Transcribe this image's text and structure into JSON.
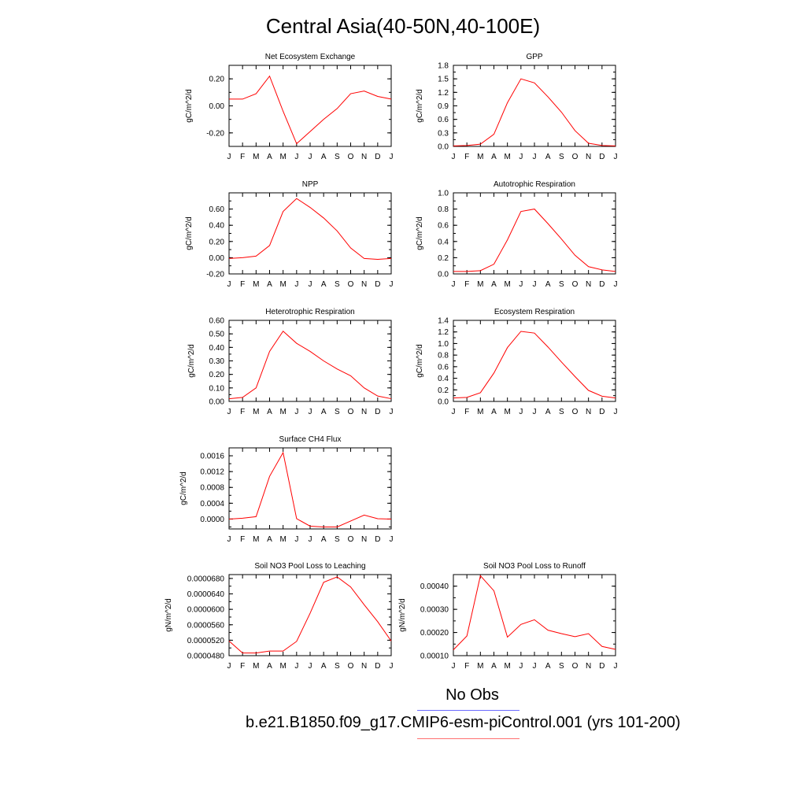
{
  "title": "Central Asia(40-50N,40-100E)",
  "colors": {
    "model": "#ff0000",
    "obs": "#0000ff"
  },
  "legend": {
    "obs_label": "No Obs",
    "case_label": "b.e21.B1850.f09_g17.CMIP6-esm-piControl.001 (yrs 101-200)"
  },
  "chart_data": [
    {
      "type": "line",
      "title": "Net Ecosystem Exchange",
      "ylabel": "gC/m^2/d",
      "categories": [
        "J",
        "F",
        "M",
        "A",
        "M",
        "J",
        "J",
        "A",
        "S",
        "O",
        "N",
        "D",
        "J"
      ],
      "yticks": [
        "-0.20",
        "0.00",
        "0.20"
      ],
      "ylim": [
        -0.3,
        0.3
      ],
      "series": [
        {
          "values": [
            0.05,
            0.05,
            0.09,
            0.22,
            -0.04,
            -0.28,
            -0.19,
            -0.1,
            -0.02,
            0.09,
            0.11,
            0.07,
            0.05
          ]
        }
      ]
    },
    {
      "type": "line",
      "title": "GPP",
      "ylabel": "gC/m^2/d",
      "categories": [
        "J",
        "F",
        "M",
        "A",
        "M",
        "J",
        "J",
        "A",
        "S",
        "O",
        "N",
        "D",
        "J"
      ],
      "yticks": [
        "0.0",
        "0.3",
        "0.6",
        "0.9",
        "1.2",
        "1.5",
        "1.8"
      ],
      "ylim": [
        0,
        1.8
      ],
      "series": [
        {
          "values": [
            0.01,
            0.02,
            0.05,
            0.27,
            0.97,
            1.5,
            1.41,
            1.1,
            0.76,
            0.35,
            0.07,
            0.02,
            0.01
          ]
        }
      ]
    },
    {
      "type": "line",
      "title": "NPP",
      "ylabel": "gC/m^2/d",
      "categories": [
        "J",
        "F",
        "M",
        "A",
        "M",
        "J",
        "J",
        "A",
        "S",
        "O",
        "N",
        "D",
        "J"
      ],
      "yticks": [
        "-0.20",
        "0.00",
        "0.20",
        "0.40",
        "0.60"
      ],
      "ylim": [
        -0.2,
        0.8
      ],
      "series": [
        {
          "values": [
            -0.01,
            0.0,
            0.02,
            0.15,
            0.57,
            0.73,
            0.62,
            0.49,
            0.33,
            0.12,
            -0.01,
            -0.02,
            -0.01
          ]
        }
      ]
    },
    {
      "type": "line",
      "title": "Autotrophic Respiration",
      "ylabel": "gC/m^2/d",
      "categories": [
        "J",
        "F",
        "M",
        "A",
        "M",
        "J",
        "J",
        "A",
        "S",
        "O",
        "N",
        "D",
        "J"
      ],
      "yticks": [
        "0.0",
        "0.2",
        "0.4",
        "0.6",
        "0.8",
        "1.0"
      ],
      "ylim": [
        0,
        1.0
      ],
      "series": [
        {
          "values": [
            0.03,
            0.03,
            0.04,
            0.12,
            0.42,
            0.77,
            0.8,
            0.62,
            0.43,
            0.23,
            0.09,
            0.05,
            0.03
          ]
        }
      ]
    },
    {
      "type": "line",
      "title": "Heterotrophic Respiration",
      "ylabel": "gC/m^2/d",
      "categories": [
        "J",
        "F",
        "M",
        "A",
        "M",
        "J",
        "J",
        "A",
        "S",
        "O",
        "N",
        "D",
        "J"
      ],
      "yticks": [
        "0.00",
        "0.10",
        "0.20",
        "0.30",
        "0.40",
        "0.50",
        "0.60"
      ],
      "ylim": [
        0,
        0.6
      ],
      "series": [
        {
          "values": [
            0.02,
            0.03,
            0.1,
            0.37,
            0.52,
            0.43,
            0.37,
            0.3,
            0.24,
            0.19,
            0.1,
            0.04,
            0.02
          ]
        }
      ]
    },
    {
      "type": "line",
      "title": "Ecosystem Respiration",
      "ylabel": "gC/m^2/d",
      "categories": [
        "J",
        "F",
        "M",
        "A",
        "M",
        "J",
        "J",
        "A",
        "S",
        "O",
        "N",
        "D",
        "J"
      ],
      "yticks": [
        "0.0",
        "0.2",
        "0.4",
        "0.6",
        "0.8",
        "1.0",
        "1.2",
        "1.4"
      ],
      "ylim": [
        0,
        1.4
      ],
      "series": [
        {
          "values": [
            0.06,
            0.07,
            0.15,
            0.49,
            0.93,
            1.21,
            1.18,
            0.94,
            0.68,
            0.43,
            0.19,
            0.09,
            0.06
          ]
        }
      ]
    },
    {
      "type": "line",
      "title": "Surface CH4 Flux",
      "ylabel": "gC/m^2/d",
      "categories": [
        "J",
        "F",
        "M",
        "A",
        "M",
        "J",
        "J",
        "A",
        "S",
        "O",
        "N",
        "D",
        "J"
      ],
      "yticks": [
        "0.0000",
        "0.0004",
        "0.0008",
        "0.0012",
        "0.0016"
      ],
      "ylim": [
        -0.00025,
        0.0018
      ],
      "series": [
        {
          "values": [
            0.0,
            2e-05,
            6e-05,
            0.00108,
            0.00168,
            1e-05,
            -0.00018,
            -0.0002,
            -0.0002,
            -5e-05,
            0.0001,
            1e-05,
            0.0
          ]
        }
      ]
    },
    {
      "type": "line",
      "title": "Soil NO3 Pool Loss to Leaching",
      "ylabel": "gN/m^2/d",
      "categories": [
        "J",
        "F",
        "M",
        "A",
        "M",
        "J",
        "J",
        "A",
        "S",
        "O",
        "N",
        "D",
        "J"
      ],
      "yticks": [
        "0.0000480",
        "0.0000520",
        "0.0000560",
        "0.0000600",
        "0.0000640",
        "0.0000680"
      ],
      "ylim": [
        4.8e-05,
        6.9e-05
      ],
      "series": [
        {
          "values": [
            5.18e-05,
            4.87e-05,
            4.87e-05,
            4.92e-05,
            4.92e-05,
            5.17e-05,
            5.9e-05,
            6.7e-05,
            6.84e-05,
            6.58e-05,
            6.12e-05,
            5.68e-05,
            5.18e-05
          ]
        }
      ]
    },
    {
      "type": "line",
      "title": "Soil NO3 Pool Loss to Runoff",
      "ylabel": "gN/m^2/d",
      "categories": [
        "J",
        "F",
        "M",
        "A",
        "M",
        "J",
        "J",
        "A",
        "S",
        "O",
        "N",
        "D",
        "J"
      ],
      "yticks": [
        "0.00010",
        "0.00020",
        "0.00030",
        "0.00040"
      ],
      "ylim": [
        0.0001,
        0.00045
      ],
      "series": [
        {
          "values": [
            0.000125,
            0.000185,
            0.000445,
            0.00038,
            0.00018,
            0.000235,
            0.000255,
            0.00021,
            0.000195,
            0.000182,
            0.000195,
            0.00014,
            0.000127
          ]
        }
      ]
    }
  ]
}
